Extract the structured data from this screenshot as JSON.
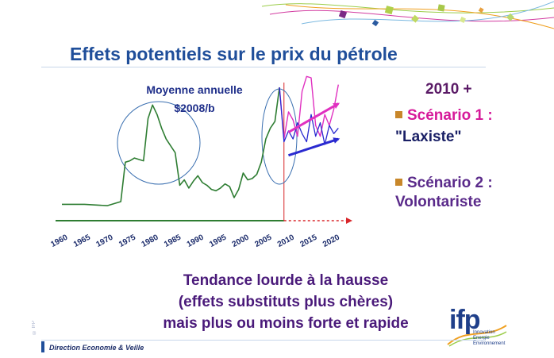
{
  "slide": {
    "title": "Effets potentiels sur le prix du pétrole",
    "annotation_line1": "Moyenne annuelle",
    "annotation_line2": "$2008/b",
    "side_heading": "2010 +",
    "scenario1_label": "Scénario 1 :",
    "scenario1_name": "\"Laxiste\"",
    "scenario2_label": "Scénario 2 :",
    "scenario2_name": "Volontariste",
    "bottom_line1": "Tendance lourde à la hausse",
    "bottom_line2": "(effets substituts plus chères)",
    "bottom_line3": "mais plus ou moins forte et rapide",
    "footer": "Direction Economie & Veille",
    "logo_text": "ifp",
    "logo_tagline1": "Innovation",
    "logo_tagline2": "Energie",
    "logo_tagline3": "Environnement",
    "side_mark": "© IFP"
  },
  "colors": {
    "title": "#1f4e9a",
    "history_line": "#2e7d32",
    "laxiste": "#e030c0",
    "volontariste": "#2a2ad0",
    "divider": "#d8262a",
    "circle": "#3a6fb0"
  },
  "chart_data": {
    "type": "line",
    "title": "",
    "xlabel": "",
    "ylabel": "",
    "xlim": [
      1960,
      2022
    ],
    "ylim": [
      0,
      105
    ],
    "x_ticks": [
      "1960",
      "1965",
      "1970",
      "1975",
      "1980",
      "1985",
      "1990",
      "1995",
      "2000",
      "2005",
      "2010",
      "2015",
      "2020"
    ],
    "grid": false,
    "series": [
      {
        "key": "history",
        "x": [
          1960,
          1965,
          1970,
          1973,
          1974,
          1975,
          1976,
          1977,
          1978,
          1979,
          1980,
          1981,
          1982,
          1983,
          1984,
          1985,
          1986,
          1987,
          1988,
          1989,
          1990,
          1991,
          1992,
          1993,
          1994,
          1995,
          1996,
          1997,
          1998,
          1999,
          2000,
          2001,
          2002,
          2003,
          2004,
          2005,
          2006,
          2007,
          2008
        ],
        "values": [
          12,
          12,
          11,
          14,
          43,
          44,
          46,
          45,
          44,
          75,
          85,
          78,
          68,
          60,
          55,
          50,
          26,
          30,
          24,
          29,
          33,
          28,
          26,
          23,
          22,
          24,
          27,
          25,
          17,
          23,
          35,
          30,
          31,
          34,
          43,
          60,
          68,
          73,
          98
        ]
      },
      {
        "key": "laxiste",
        "x": [
          2008,
          2009,
          2010,
          2011,
          2012,
          2013,
          2014,
          2015,
          2016,
          2017,
          2018,
          2019,
          2020,
          2021
        ],
        "values": [
          98,
          60,
          80,
          74,
          62,
          95,
          106,
          105,
          70,
          62,
          78,
          70,
          82,
          100
        ]
      },
      {
        "key": "volontariste",
        "x": [
          2008,
          2009,
          2010,
          2011,
          2012,
          2013,
          2014,
          2015,
          2016,
          2017,
          2018,
          2019,
          2020,
          2021
        ],
        "values": [
          98,
          58,
          66,
          60,
          72,
          64,
          58,
          78,
          62,
          72,
          56,
          70,
          64,
          68
        ]
      }
    ],
    "trend_arrows": [
      {
        "series": "laxiste",
        "from": [
          2010,
          65
        ],
        "to": [
          2021,
          86
        ]
      },
      {
        "series": "volontariste",
        "from": [
          2010,
          48
        ],
        "to": [
          2021,
          60
        ]
      }
    ],
    "forecast_divider_x": 2009,
    "axis_extension_from": 2009
  }
}
